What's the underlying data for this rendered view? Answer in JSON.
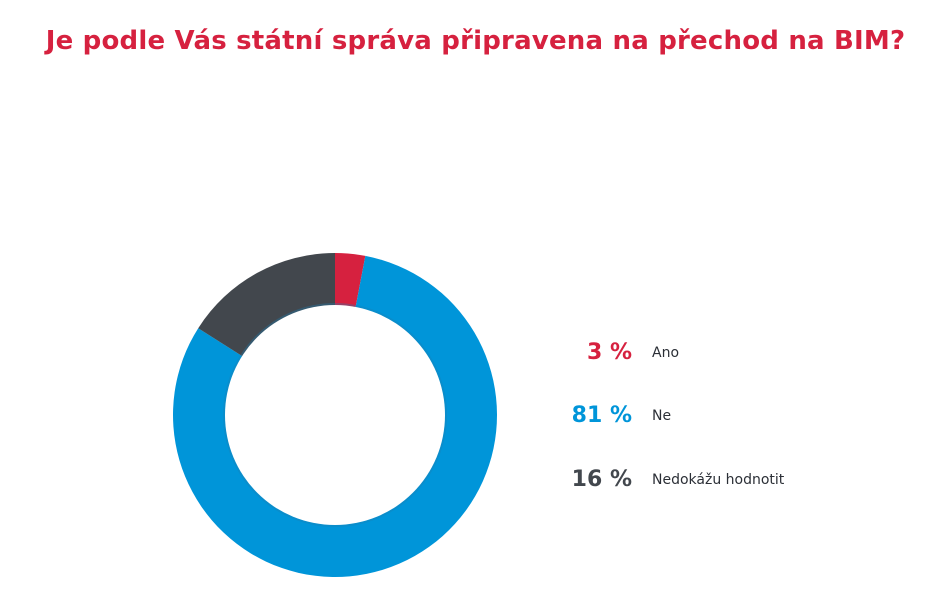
{
  "title": "Je podle Vás státní správa připravena na přechod na BIM?",
  "chart_data": {
    "type": "pie",
    "variant": "donut",
    "title": "Je podle Vás státní správa připravena na přechod na BIM?",
    "categories": [
      "Ano",
      "Ne",
      "Nedokážu hodnotit"
    ],
    "values": [
      3,
      81,
      16
    ],
    "value_labels": [
      "3 %",
      "81 %",
      "16 %"
    ],
    "colors": [
      "#d6213f",
      "#0095d9",
      "#42474d"
    ],
    "legend_placement": "right"
  }
}
